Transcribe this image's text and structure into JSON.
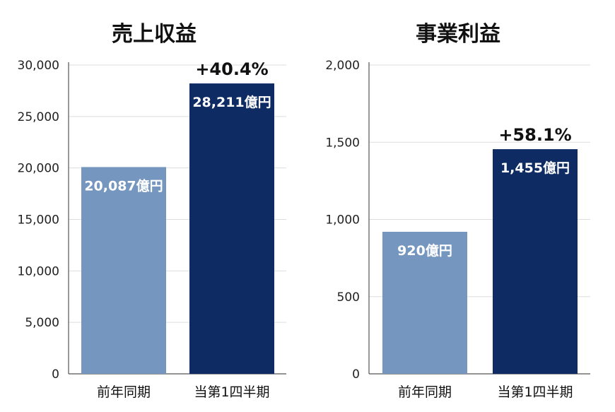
{
  "colors": {
    "previous": "#7596bf",
    "current": "#0e2c63"
  },
  "chart_data": [
    {
      "type": "bar",
      "title": "売上収益",
      "categories": [
        "前年同期",
        "当第1四半期"
      ],
      "values": [
        20087,
        28211
      ],
      "data_labels": [
        "20,087億円",
        "28,211億円"
      ],
      "change_label": "+40.4%",
      "ylim": [
        0,
        30000
      ],
      "yticks": [
        0,
        5000,
        10000,
        15000,
        20000,
        25000,
        30000
      ],
      "ytick_labels": [
        "0",
        "5,000",
        "10,000",
        "15,000",
        "20,000",
        "25,000",
        "30,000"
      ],
      "grid": true
    },
    {
      "type": "bar",
      "title": "事業利益",
      "categories": [
        "前年同期",
        "当第1四半期"
      ],
      "values": [
        920,
        1455
      ],
      "data_labels": [
        "920億円",
        "1,455億円"
      ],
      "change_label": "+58.1%",
      "ylim": [
        0,
        2000
      ],
      "yticks": [
        0,
        500,
        1000,
        1500,
        2000
      ],
      "ytick_labels": [
        "0",
        "500",
        "1,000",
        "1,500",
        "2,000"
      ],
      "grid": true
    }
  ]
}
